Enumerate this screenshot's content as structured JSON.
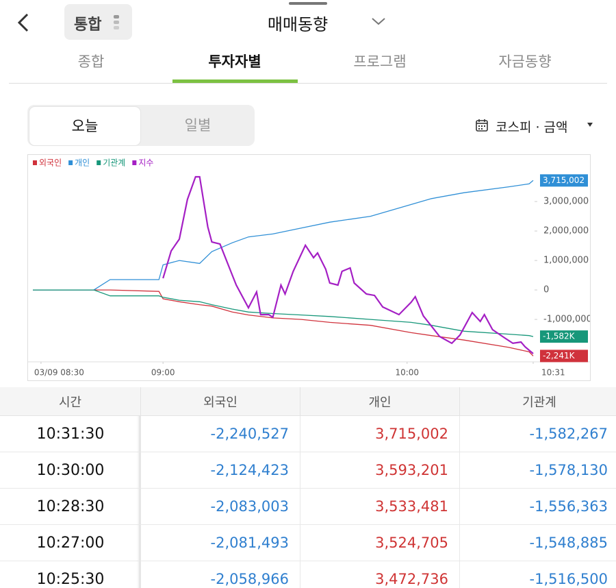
{
  "header": {
    "chip": "통합",
    "title": "매매동향"
  },
  "tabs": {
    "items": [
      "종합",
      "투자자별",
      "프로그램",
      "자금동향"
    ],
    "active": 1
  },
  "segments": {
    "items": [
      "오늘",
      "일별"
    ],
    "active": 0
  },
  "selector": "코스피 · 금액",
  "chart_data": {
    "type": "line",
    "x": [
      "08:28",
      "08:43",
      "08:47",
      "08:59",
      "09:00",
      "09:04",
      "09:09",
      "09:12",
      "09:17",
      "09:21",
      "09:27",
      "09:34",
      "09:41",
      "09:51",
      "10:01",
      "10:06",
      "10:14",
      "10:25",
      "10:30",
      "10:31"
    ],
    "xlim": [
      "08:28",
      "10:31"
    ],
    "xticks": [
      {
        "value": "08:30",
        "label": "03/09 08:30"
      },
      "09:00",
      "10:00",
      "10:31"
    ],
    "ylim": [
      -2440000,
      4560000
    ],
    "yticks": [
      {
        "value": -1000000,
        "label": "-1,000,000"
      },
      0,
      {
        "value": 1000000,
        "label": "1,000,000"
      },
      {
        "value": 2000000,
        "label": "2,000,000"
      },
      {
        "value": 3000000,
        "label": "3,000,000"
      }
    ],
    "y2lim": [
      0,
      100
    ],
    "legend": "top-left",
    "series": [
      {
        "name": "외국인",
        "color": "#d0323c",
        "values": [
          0,
          0,
          0,
          -50000,
          -300000,
          -400000,
          -500000,
          -550000,
          -750000,
          -850000,
          -950000,
          -1000000,
          -1100000,
          -1200000,
          -1450000,
          -1550000,
          -1700000,
          -1950000,
          -2100000,
          -2240527
        ],
        "value_labels": [
          null,
          null,
          null,
          null,
          null,
          null,
          null,
          null,
          null,
          null,
          null,
          null,
          null,
          null,
          null,
          null,
          null,
          null,
          null,
          "-2,241K"
        ]
      },
      {
        "name": "개인",
        "color": "#2f8fd6",
        "values": [
          0,
          0,
          350000,
          350000,
          850000,
          1000000,
          900000,
          1300000,
          1600000,
          1800000,
          1900000,
          2100000,
          2300000,
          2500000,
          2900000,
          3100000,
          3300000,
          3500000,
          3600000,
          3715002
        ],
        "value_labels": [
          null,
          null,
          null,
          null,
          null,
          null,
          null,
          null,
          null,
          null,
          null,
          null,
          null,
          null,
          null,
          null,
          null,
          null,
          null,
          "3,715,002"
        ]
      },
      {
        "name": "기관계",
        "color": "#17977a",
        "values": [
          0,
          0,
          -200000,
          -200000,
          -250000,
          -350000,
          -400000,
          -500000,
          -650000,
          -750000,
          -800000,
          -850000,
          -900000,
          -1000000,
          -1100000,
          -1200000,
          -1400000,
          -1500000,
          -1550000,
          -1582267
        ],
        "value_labels": [
          null,
          null,
          null,
          null,
          null,
          null,
          null,
          null,
          null,
          null,
          null,
          null,
          null,
          null,
          null,
          null,
          null,
          null,
          null,
          "-1,582K"
        ]
      },
      {
        "name": "지수",
        "color": "#a41fc4",
        "axis": "y2",
        "x": [
          "09:00",
          "09:02",
          "09:04",
          "09:06",
          "09:08",
          "09:09",
          "09:11",
          "09:12",
          "09:14",
          "09:17",
          "09:18",
          "09:21",
          "09:23",
          "09:24",
          "09:26",
          "09:27",
          "09:29",
          "09:30",
          "09:32",
          "09:35",
          "09:37",
          "09:38",
          "09:40",
          "09:41",
          "09:43",
          "09:44",
          "09:46",
          "09:47",
          "09:50",
          "09:52",
          "09:54",
          "09:58",
          "10:01",
          "10:02",
          "10:04",
          "10:08",
          "10:11",
          "10:13",
          "10:16",
          "10:18",
          "10:19",
          "10:21",
          "10:24",
          "10:26",
          "10:28",
          "10:29",
          "10:31"
        ],
        "values": [
          40.5,
          53.8,
          59.5,
          78.7,
          89.7,
          89.7,
          65.4,
          58.1,
          57.1,
          42.2,
          37.2,
          26.2,
          33.9,
          22.9,
          22.9,
          21.6,
          37.2,
          32.9,
          43.9,
          56.5,
          50.5,
          52.8,
          44.9,
          38.2,
          37.2,
          43.9,
          45.5,
          38.2,
          32.9,
          32.2,
          26.6,
          22.9,
          28.9,
          31.6,
          22.3,
          12.3,
          9.0,
          13.0,
          23.9,
          19.6,
          22.9,
          15.6,
          11.6,
          9.0,
          9.6,
          7.3,
          4.0
        ]
      }
    ]
  },
  "table": {
    "columns": [
      "시간",
      "외국인",
      "개인",
      "기관계"
    ],
    "rows": [
      [
        "10:31:30",
        "-2,240,527",
        "3,715,002",
        "-1,582,267"
      ],
      [
        "10:30:00",
        "-2,124,423",
        "3,593,201",
        "-1,578,130"
      ],
      [
        "10:28:30",
        "-2,083,003",
        "3,533,481",
        "-1,556,363"
      ],
      [
        "10:27:00",
        "-2,081,493",
        "3,524,705",
        "-1,548,885"
      ],
      [
        "10:25:30",
        "-2,058,966",
        "3,472,736",
        "-1,516,500"
      ]
    ]
  }
}
